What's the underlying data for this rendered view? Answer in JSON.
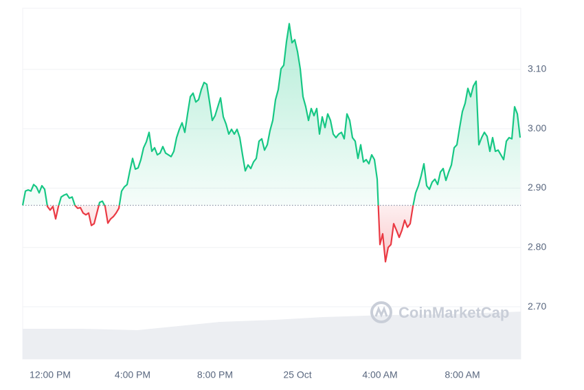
{
  "chart_data": {
    "type": "line",
    "watermark": "CoinMarketCap",
    "baseline": 2.871,
    "up_color": "#16c784",
    "down_color": "#ea3943",
    "grid": true,
    "xlim": [
      -80,
      1370
    ],
    "xticks": [
      {
        "value": 0,
        "label": "12:00 PM"
      },
      {
        "value": 240,
        "label": "4:00 PM"
      },
      {
        "value": 480,
        "label": "8:00 PM"
      },
      {
        "value": 720,
        "label": "25 Oct"
      },
      {
        "value": 960,
        "label": "4:00 AM"
      },
      {
        "value": 1200,
        "label": "8:00 AM"
      }
    ],
    "ylim": [
      2.612,
      3.203
    ],
    "yticks": [
      {
        "value": 2.7,
        "label": "2.70"
      },
      {
        "value": 2.8,
        "label": "2.80"
      },
      {
        "value": 2.9,
        "label": "2.90"
      },
      {
        "value": 3.0,
        "label": "3.00"
      },
      {
        "value": 3.1,
        "label": "3.10"
      }
    ],
    "x": [
      -80,
      -72,
      -64,
      -56,
      -48,
      -40,
      -32,
      -24,
      -16,
      -8,
      0,
      8,
      16,
      24,
      32,
      40,
      48,
      56,
      64,
      72,
      80,
      88,
      96,
      104,
      112,
      120,
      128,
      136,
      144,
      152,
      160,
      168,
      176,
      184,
      192,
      200,
      208,
      216,
      224,
      232,
      240,
      248,
      256,
      264,
      272,
      280,
      288,
      296,
      304,
      312,
      320,
      328,
      336,
      344,
      352,
      360,
      368,
      376,
      384,
      392,
      400,
      408,
      416,
      424,
      432,
      440,
      448,
      456,
      464,
      472,
      480,
      488,
      496,
      504,
      512,
      520,
      528,
      536,
      544,
      552,
      560,
      568,
      576,
      584,
      592,
      600,
      608,
      616,
      624,
      632,
      640,
      648,
      656,
      664,
      672,
      680,
      688,
      696,
      704,
      712,
      720,
      728,
      736,
      744,
      752,
      760,
      768,
      776,
      784,
      792,
      800,
      808,
      816,
      824,
      832,
      840,
      848,
      856,
      864,
      872,
      880,
      888,
      896,
      904,
      912,
      920,
      928,
      936,
      944,
      952,
      960,
      968,
      976,
      984,
      992,
      1000,
      1008,
      1016,
      1024,
      1032,
      1040,
      1048,
      1056,
      1064,
      1072,
      1080,
      1088,
      1096,
      1104,
      1112,
      1120,
      1128,
      1136,
      1144,
      1152,
      1160,
      1168,
      1176,
      1184,
      1192,
      1200,
      1208,
      1216,
      1224,
      1232,
      1240,
      1248,
      1256,
      1264,
      1272,
      1280,
      1288,
      1296,
      1304,
      1312,
      1320,
      1328,
      1336,
      1344,
      1352,
      1360,
      1368
    ],
    "values": [
      2.871,
      2.895,
      2.897,
      2.895,
      2.906,
      2.902,
      2.892,
      2.904,
      2.898,
      2.869,
      2.863,
      2.869,
      2.848,
      2.869,
      2.885,
      2.888,
      2.89,
      2.883,
      2.885,
      2.871,
      2.866,
      2.867,
      2.858,
      2.855,
      2.858,
      2.837,
      2.84,
      2.858,
      2.876,
      2.878,
      2.869,
      2.841,
      2.848,
      2.852,
      2.858,
      2.866,
      2.895,
      2.902,
      2.906,
      2.929,
      2.95,
      2.932,
      2.934,
      2.948,
      2.968,
      2.978,
      2.994,
      2.962,
      2.968,
      2.956,
      2.959,
      2.97,
      2.959,
      2.956,
      2.953,
      2.962,
      2.985,
      2.999,
      3.01,
      2.994,
      3.025,
      3.054,
      3.06,
      3.045,
      3.049,
      3.066,
      3.078,
      3.075,
      3.045,
      3.014,
      3.022,
      3.037,
      3.052,
      3.02,
      3.008,
      2.991,
      2.999,
      2.991,
      2.999,
      2.985,
      2.956,
      2.929,
      2.939,
      2.933,
      2.944,
      2.95,
      2.979,
      2.983,
      2.964,
      2.973,
      2.997,
      3.014,
      3.049,
      3.066,
      3.101,
      3.107,
      3.147,
      3.177,
      3.145,
      3.15,
      3.13,
      3.101,
      3.054,
      3.037,
      3.014,
      3.034,
      3.022,
      3.034,
      2.991,
      3.02,
      3.002,
      3.025,
      3.014,
      2.991,
      2.985,
      2.991,
      2.994,
      2.983,
      3.025,
      3.014,
      2.985,
      2.979,
      2.95,
      2.973,
      2.944,
      2.948,
      2.941,
      2.956,
      2.948,
      2.915,
      2.805,
      2.823,
      2.776,
      2.8,
      2.805,
      2.84,
      2.829,
      2.817,
      2.829,
      2.846,
      2.834,
      2.84,
      2.869,
      2.892,
      2.904,
      2.921,
      2.941,
      2.904,
      2.898,
      2.91,
      2.915,
      2.906,
      2.927,
      2.933,
      2.913,
      2.927,
      2.939,
      2.968,
      2.973,
      3.002,
      3.029,
      3.043,
      3.068,
      3.054,
      3.072,
      3.08,
      2.973,
      2.985,
      2.994,
      2.987,
      2.962,
      2.985,
      2.962,
      2.964,
      2.956,
      2.948,
      2.979,
      2.985,
      2.983,
      3.037,
      3.025,
      2.985
    ]
  }
}
